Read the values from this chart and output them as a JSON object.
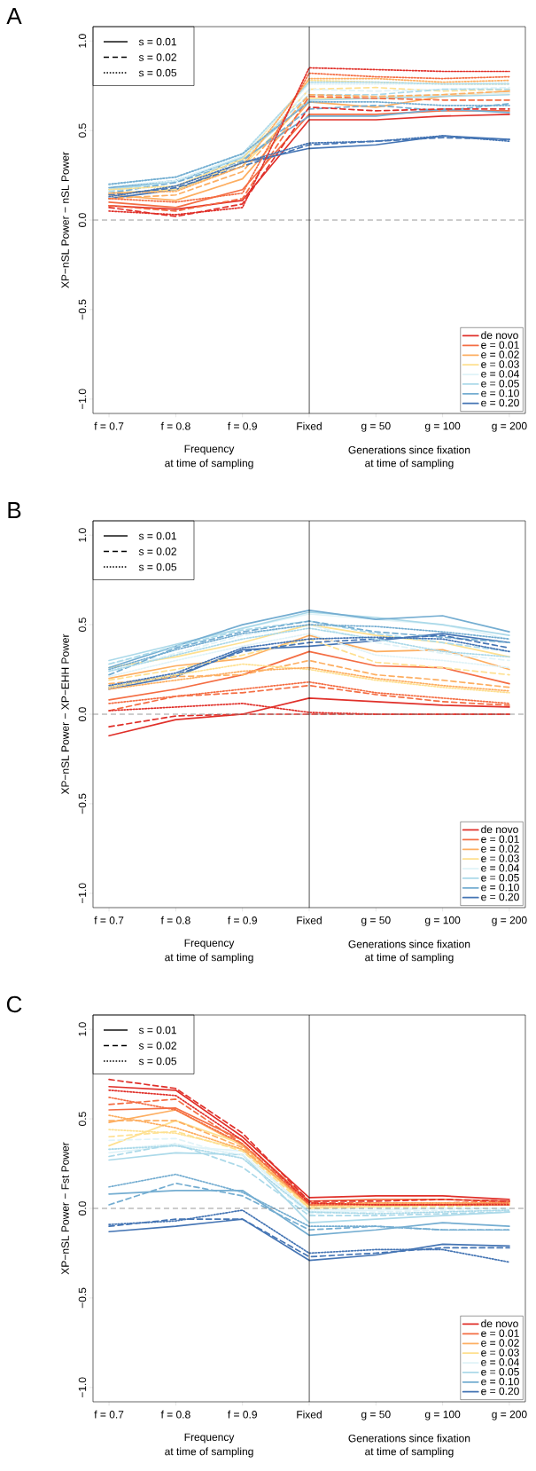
{
  "chart_data": [
    {
      "type": "line",
      "title": "A",
      "ylabel": "XP−nSL Power − nSL Power",
      "legend": "bottom right",
      "categories": [
        "f = 0.7",
        "f = 0.8",
        "f = 0.9",
        "Fixed",
        "g = 50",
        "g = 100",
        "g = 200"
      ],
      "ylim": [
        -1.08,
        1.08
      ],
      "yticks": [
        {
          "value": -1,
          "label": "−1.0"
        },
        {
          "value": -0.5,
          "label": "−0.5"
        },
        {
          "value": 0,
          "label": "0.0"
        },
        {
          "value": 0.5,
          "label": "0.5"
        },
        {
          "value": 1,
          "label": "1.0"
        }
      ],
      "ref_lines": [
        {
          "axis": "y",
          "value": 0,
          "color": "#808080",
          "line_style": "dashed"
        },
        {
          "axis": "x",
          "value": "Fixed",
          "color": "#000000",
          "line_style": "solid"
        }
      ],
      "annotations": [
        "s = 0.01",
        "s = 0.02",
        "s = 0.05",
        "Frequency",
        "at time of sampling",
        "Generations since fixation",
        "at time of sampling"
      ],
      "series": [
        {
          "color": "#fee090",
          "line_style": "dashed",
          "values": [
            0.15,
            0.17,
            0.32,
            0.73,
            0.74,
            0.72,
            0.73
          ]
        },
        {
          "color": "#fee090",
          "line_style": "dotted",
          "values": [
            0.17,
            0.19,
            0.34,
            0.78,
            0.77,
            0.76,
            0.76
          ]
        },
        {
          "color": "#e0f3f8",
          "line_style": "dashed",
          "values": [
            0.16,
            0.21,
            0.34,
            0.73,
            0.72,
            0.73,
            0.74
          ]
        },
        {
          "color": "#e0f3f8",
          "line_style": "dotted",
          "values": [
            0.19,
            0.22,
            0.36,
            0.76,
            0.76,
            0.76,
            0.77
          ]
        },
        {
          "color": "#abd9e9",
          "line_style": "dashed",
          "values": [
            0.16,
            0.22,
            0.35,
            0.7,
            0.7,
            0.73,
            0.73
          ]
        },
        {
          "color": "#abd9e9",
          "line_style": "dotted",
          "values": [
            0.2,
            0.24,
            0.37,
            0.77,
            0.77,
            0.76,
            0.76
          ]
        },
        {
          "color": "#fdae61",
          "line_style": "dashed",
          "values": [
            0.12,
            0.14,
            0.27,
            0.7,
            0.69,
            0.7,
            0.72
          ]
        },
        {
          "color": "#fdae61",
          "line_style": "dotted",
          "values": [
            0.15,
            0.16,
            0.3,
            0.79,
            0.79,
            0.77,
            0.78
          ]
        },
        {
          "color": "#f46d43",
          "line_style": "dashed",
          "values": [
            0.08,
            0.05,
            0.12,
            0.69,
            0.68,
            0.67,
            0.67
          ]
        },
        {
          "color": "#f46d43",
          "line_style": "dotted",
          "values": [
            0.12,
            0.1,
            0.15,
            0.82,
            0.8,
            0.79,
            0.8
          ]
        },
        {
          "color": "#74add1",
          "line_style": "dashed",
          "values": [
            0.15,
            0.21,
            0.33,
            0.62,
            0.64,
            0.61,
            0.65
          ]
        },
        {
          "color": "#74add1",
          "line_style": "dotted",
          "values": [
            0.2,
            0.24,
            0.37,
            0.66,
            0.66,
            0.64,
            0.64
          ]
        },
        {
          "color": "#4575b4",
          "line_style": "dashed",
          "values": [
            0.14,
            0.18,
            0.3,
            0.42,
            0.44,
            0.46,
            0.45
          ]
        },
        {
          "color": "#4575b4",
          "line_style": "dotted",
          "values": [
            0.13,
            0.19,
            0.32,
            0.43,
            0.44,
            0.47,
            0.44
          ]
        },
        {
          "color": "#e0302a",
          "line_style": "dashed",
          "values": [
            0.07,
            0.02,
            0.09,
            0.63,
            0.61,
            0.62,
            0.62
          ]
        },
        {
          "color": "#e0302a",
          "line_style": "dotted",
          "values": [
            0.05,
            0.03,
            0.07,
            0.85,
            0.84,
            0.83,
            0.83
          ]
        },
        {
          "name": "de novo",
          "color": "#e0302a",
          "line_style": "solid",
          "values": [
            0.08,
            0.06,
            0.11,
            0.56,
            0.56,
            0.58,
            0.59
          ]
        },
        {
          "name": "e = 0.01",
          "color": "#f46d43",
          "line_style": "solid",
          "values": [
            0.1,
            0.07,
            0.17,
            0.59,
            0.59,
            0.61,
            0.61
          ]
        },
        {
          "name": "e = 0.02",
          "color": "#fdae61",
          "line_style": "solid",
          "values": [
            0.14,
            0.11,
            0.23,
            0.66,
            0.63,
            0.69,
            0.72
          ]
        },
        {
          "name": "e = 0.03",
          "color": "#fee090",
          "line_style": "solid",
          "values": [
            0.15,
            0.17,
            0.3,
            0.68,
            0.68,
            0.7,
            0.71
          ]
        },
        {
          "name": "e = 0.04",
          "color": "#e0f3f8",
          "line_style": "solid",
          "values": [
            0.17,
            0.21,
            0.34,
            0.7,
            0.69,
            0.7,
            0.71
          ]
        },
        {
          "name": "e = 0.05",
          "color": "#abd9e9",
          "line_style": "solid",
          "values": [
            0.17,
            0.22,
            0.35,
            0.67,
            0.68,
            0.69,
            0.7
          ]
        },
        {
          "name": "e = 0.10",
          "color": "#74add1",
          "line_style": "solid",
          "values": [
            0.18,
            0.22,
            0.34,
            0.58,
            0.58,
            0.62,
            0.6
          ]
        },
        {
          "name": "e = 0.20",
          "color": "#4575b4",
          "line_style": "solid",
          "values": [
            0.12,
            0.17,
            0.32,
            0.4,
            0.42,
            0.47,
            0.45
          ]
        }
      ]
    },
    {
      "type": "line",
      "title": "B",
      "ylabel": "XP−nSL Power − XP−EHH Power",
      "legend": "bottom right",
      "categories": [
        "f = 0.7",
        "f = 0.8",
        "f = 0.9",
        "Fixed",
        "g = 50",
        "g = 100",
        "g = 200"
      ],
      "ylim": [
        -1.08,
        1.08
      ],
      "yticks": [
        {
          "value": -1,
          "label": "−1.0"
        },
        {
          "value": -0.5,
          "label": "−0.5"
        },
        {
          "value": 0,
          "label": "0.0"
        },
        {
          "value": 0.5,
          "label": "0.5"
        },
        {
          "value": 1,
          "label": "1.0"
        }
      ],
      "ref_lines": [
        {
          "axis": "y",
          "value": 0,
          "color": "#808080",
          "line_style": "dashed"
        },
        {
          "axis": "x",
          "value": "Fixed",
          "color": "#000000",
          "line_style": "solid"
        }
      ],
      "annotations": [
        "s = 0.01",
        "s = 0.02",
        "s = 0.05",
        "Frequency",
        "at time of sampling",
        "Generations since fixation",
        "at time of sampling"
      ],
      "series": [
        {
          "color": "#fee090",
          "line_style": "dashed",
          "values": [
            0.19,
            0.25,
            0.33,
            0.42,
            0.29,
            0.26,
            0.22
          ]
        },
        {
          "color": "#fee090",
          "line_style": "dotted",
          "values": [
            0.15,
            0.22,
            0.28,
            0.25,
            0.19,
            0.15,
            0.12
          ]
        },
        {
          "color": "#e0f3f8",
          "line_style": "dashed",
          "values": [
            0.24,
            0.34,
            0.44,
            0.5,
            0.4,
            0.34,
            0.3
          ]
        },
        {
          "color": "#e0f3f8",
          "line_style": "dotted",
          "values": [
            0.21,
            0.3,
            0.38,
            0.45,
            0.33,
            0.3,
            0.26
          ]
        },
        {
          "color": "#abd9e9",
          "line_style": "dashed",
          "values": [
            0.28,
            0.38,
            0.47,
            0.52,
            0.45,
            0.4,
            0.35
          ]
        },
        {
          "color": "#abd9e9",
          "line_style": "dotted",
          "values": [
            0.24,
            0.33,
            0.42,
            0.48,
            0.42,
            0.35,
            0.32
          ]
        },
        {
          "color": "#fdae61",
          "line_style": "dashed",
          "values": [
            0.17,
            0.21,
            0.22,
            0.3,
            0.22,
            0.19,
            0.15
          ]
        },
        {
          "color": "#fdae61",
          "line_style": "dotted",
          "values": [
            0.14,
            0.19,
            0.24,
            0.26,
            0.2,
            0.16,
            0.13
          ]
        },
        {
          "color": "#f46d43",
          "line_style": "dashed",
          "values": [
            0.02,
            0.1,
            0.12,
            0.16,
            0.11,
            0.07,
            0.05
          ]
        },
        {
          "color": "#f46d43",
          "line_style": "dotted",
          "values": [
            0.06,
            0.1,
            0.14,
            0.18,
            0.12,
            0.09,
            0.06
          ]
        },
        {
          "color": "#74add1",
          "line_style": "dashed",
          "values": [
            0.22,
            0.37,
            0.46,
            0.52,
            0.46,
            0.43,
            0.4
          ]
        },
        {
          "color": "#74add1",
          "line_style": "dotted",
          "values": [
            0.25,
            0.36,
            0.45,
            0.5,
            0.49,
            0.46,
            0.42
          ]
        },
        {
          "color": "#4575b4",
          "line_style": "dashed",
          "values": [
            0.15,
            0.22,
            0.35,
            0.4,
            0.42,
            0.44,
            0.37
          ]
        },
        {
          "color": "#4575b4",
          "line_style": "dotted",
          "values": [
            0.16,
            0.23,
            0.37,
            0.42,
            0.43,
            0.42,
            0.35
          ]
        },
        {
          "color": "#e0302a",
          "line_style": "dashed",
          "values": [
            -0.07,
            -0.01,
            0.0,
            0.0,
            0.0,
            0.0,
            0.0
          ]
        },
        {
          "color": "#e0302a",
          "line_style": "dotted",
          "values": [
            0.02,
            0.04,
            0.06,
            0.01,
            0.0,
            0.0,
            0.0
          ]
        },
        {
          "name": "de novo",
          "color": "#e0302a",
          "line_style": "solid",
          "values": [
            -0.12,
            -0.03,
            0.0,
            0.09,
            0.07,
            0.05,
            0.04
          ]
        },
        {
          "name": "e = 0.01",
          "color": "#f46d43",
          "line_style": "solid",
          "values": [
            0.08,
            0.14,
            0.22,
            0.35,
            0.27,
            0.26,
            0.17
          ]
        },
        {
          "name": "e = 0.02",
          "color": "#fdae61",
          "line_style": "solid",
          "values": [
            0.2,
            0.27,
            0.31,
            0.44,
            0.35,
            0.36,
            0.25
          ]
        },
        {
          "name": "e = 0.03",
          "color": "#fee090",
          "line_style": "solid",
          "values": [
            0.26,
            0.32,
            0.4,
            0.5,
            0.44,
            0.4,
            0.32
          ]
        },
        {
          "name": "e = 0.04",
          "color": "#e0f3f8",
          "line_style": "solid",
          "values": [
            0.28,
            0.37,
            0.48,
            0.56,
            0.53,
            0.5,
            0.42
          ]
        },
        {
          "name": "e = 0.05",
          "color": "#abd9e9",
          "line_style": "solid",
          "values": [
            0.3,
            0.39,
            0.48,
            0.57,
            0.54,
            0.5,
            0.44
          ]
        },
        {
          "name": "e = 0.10",
          "color": "#74add1",
          "line_style": "solid",
          "values": [
            0.26,
            0.38,
            0.5,
            0.58,
            0.53,
            0.55,
            0.46
          ]
        },
        {
          "name": "e = 0.20",
          "color": "#4575b4",
          "line_style": "solid",
          "values": [
            0.14,
            0.21,
            0.36,
            0.38,
            0.41,
            0.45,
            0.4
          ]
        }
      ]
    },
    {
      "type": "line",
      "title": "C",
      "ylabel": "XP−nSL Power − Fst Power",
      "legend": "bottom right",
      "categories": [
        "f = 0.7",
        "f = 0.8",
        "f = 0.9",
        "Fixed",
        "g = 50",
        "g = 100",
        "g = 200"
      ],
      "ylim": [
        -1.08,
        1.08
      ],
      "yticks": [
        {
          "value": -1,
          "label": "−1.0"
        },
        {
          "value": -0.5,
          "label": "−0.5"
        },
        {
          "value": 0,
          "label": "0.0"
        },
        {
          "value": 0.5,
          "label": "0.5"
        },
        {
          "value": 1,
          "label": "1.0"
        }
      ],
      "ref_lines": [
        {
          "axis": "y",
          "value": 0,
          "color": "#808080",
          "line_style": "dashed"
        },
        {
          "axis": "x",
          "value": "Fixed",
          "color": "#000000",
          "line_style": "solid"
        }
      ],
      "annotations": [
        "s = 0.01",
        "s = 0.02",
        "s = 0.05",
        "Frequency",
        "at time of sampling",
        "Generations since fixation",
        "at time of sampling"
      ],
      "series": [
        {
          "color": "#fee090",
          "line_style": "dashed",
          "values": [
            0.4,
            0.43,
            0.32,
            0.0,
            0.01,
            0.01,
            0.02
          ]
        },
        {
          "color": "#fee090",
          "line_style": "dotted",
          "values": [
            0.44,
            0.42,
            0.33,
            0.01,
            0.02,
            0.02,
            0.02
          ]
        },
        {
          "color": "#e0f3f8",
          "line_style": "dashed",
          "values": [
            0.38,
            0.39,
            0.28,
            -0.03,
            -0.02,
            -0.01,
            -0.01
          ]
        },
        {
          "color": "#e0f3f8",
          "line_style": "dotted",
          "values": [
            0.33,
            0.36,
            0.3,
            -0.01,
            0.0,
            0.0,
            0.0
          ]
        },
        {
          "color": "#abd9e9",
          "line_style": "dashed",
          "values": [
            0.29,
            0.36,
            0.23,
            -0.04,
            -0.04,
            -0.03,
            -0.02
          ]
        },
        {
          "color": "#abd9e9",
          "line_style": "dotted",
          "values": [
            0.33,
            0.35,
            0.28,
            -0.02,
            -0.03,
            -0.02,
            -0.01
          ]
        },
        {
          "color": "#fdae61",
          "line_style": "dashed",
          "values": [
            0.49,
            0.49,
            0.34,
            0.01,
            0.02,
            0.02,
            0.02
          ]
        },
        {
          "color": "#fdae61",
          "line_style": "dotted",
          "values": [
            0.52,
            0.45,
            0.33,
            0.02,
            0.03,
            0.03,
            0.03
          ]
        },
        {
          "color": "#f46d43",
          "line_style": "dashed",
          "values": [
            0.58,
            0.61,
            0.36,
            0.03,
            0.03,
            0.03,
            0.04
          ]
        },
        {
          "color": "#f46d43",
          "line_style": "dotted",
          "values": [
            0.62,
            0.55,
            0.36,
            0.02,
            0.02,
            0.02,
            0.03
          ]
        },
        {
          "color": "#74add1",
          "line_style": "dashed",
          "values": [
            0.02,
            0.14,
            0.07,
            -0.12,
            -0.1,
            -0.12,
            -0.12
          ]
        },
        {
          "color": "#74add1",
          "line_style": "dotted",
          "values": [
            0.12,
            0.19,
            0.09,
            -0.1,
            -0.1,
            -0.12,
            -0.12
          ]
        },
        {
          "color": "#4575b4",
          "line_style": "dashed",
          "values": [
            -0.1,
            -0.06,
            -0.06,
            -0.27,
            -0.25,
            -0.22,
            -0.22
          ]
        },
        {
          "color": "#4575b4",
          "line_style": "dotted",
          "values": [
            -0.09,
            -0.07,
            -0.01,
            -0.25,
            -0.23,
            -0.23,
            -0.3
          ]
        },
        {
          "color": "#e0302a",
          "line_style": "dashed",
          "values": [
            0.72,
            0.67,
            0.42,
            0.04,
            0.04,
            0.05,
            0.04
          ]
        },
        {
          "color": "#e0302a",
          "line_style": "dotted",
          "values": [
            0.66,
            0.63,
            0.38,
            0.03,
            0.02,
            0.02,
            0.02
          ]
        },
        {
          "name": "de novo",
          "color": "#e0302a",
          "line_style": "solid",
          "values": [
            0.68,
            0.66,
            0.4,
            0.06,
            0.07,
            0.07,
            0.05
          ]
        },
        {
          "name": "e = 0.01",
          "color": "#f46d43",
          "line_style": "solid",
          "values": [
            0.55,
            0.56,
            0.38,
            0.04,
            0.05,
            0.05,
            0.04
          ]
        },
        {
          "name": "e = 0.02",
          "color": "#fdae61",
          "line_style": "solid",
          "values": [
            0.48,
            0.55,
            0.35,
            0.02,
            0.03,
            0.03,
            0.03
          ]
        },
        {
          "name": "e = 0.03",
          "color": "#fee090",
          "line_style": "solid",
          "values": [
            0.35,
            0.49,
            0.36,
            0.0,
            0.01,
            0.02,
            0.02
          ]
        },
        {
          "name": "e = 0.04",
          "color": "#e0f3f8",
          "line_style": "solid",
          "values": [
            0.31,
            0.35,
            0.32,
            -0.02,
            -0.01,
            0.0,
            0.0
          ]
        },
        {
          "name": "e = 0.05",
          "color": "#abd9e9",
          "line_style": "solid",
          "values": [
            0.27,
            0.31,
            0.3,
            -0.08,
            -0.06,
            -0.04,
            -0.02
          ]
        },
        {
          "name": "e = 0.10",
          "color": "#74add1",
          "line_style": "solid",
          "values": [
            0.08,
            0.1,
            0.1,
            -0.15,
            -0.12,
            -0.08,
            -0.1
          ]
        },
        {
          "name": "e = 0.20",
          "color": "#4575b4",
          "line_style": "solid",
          "values": [
            -0.13,
            -0.1,
            -0.06,
            -0.29,
            -0.26,
            -0.2,
            -0.21
          ]
        }
      ]
    }
  ]
}
